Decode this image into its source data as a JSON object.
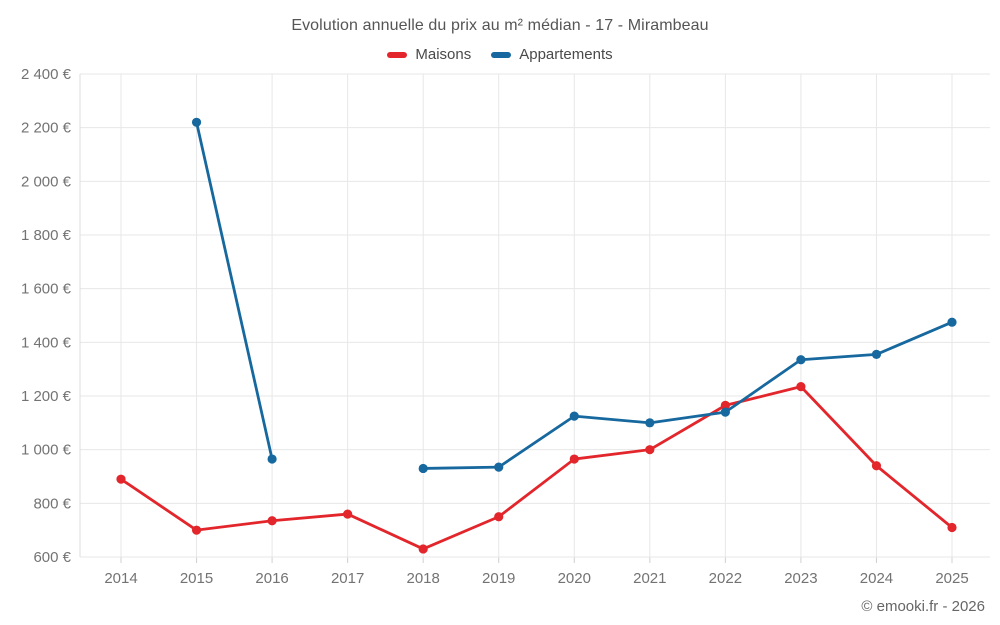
{
  "title": "Evolution annuelle du prix au m² médian - 17 - Mirambeau",
  "footer": "© emooki.fr - 2026",
  "legend": [
    {
      "label": "Maisons",
      "color": "#e2262b"
    },
    {
      "label": "Appartements",
      "color": "#16689e"
    }
  ],
  "colors": {
    "maisons": "#e2262b",
    "appartements": "#16689e",
    "grid": "#e7e7e7",
    "axis_line": "#dcdcdc",
    "tick": "#d0d0d0",
    "axis_text": "#737373",
    "title_text": "#555555",
    "footer_text": "#666666"
  },
  "chart_data": {
    "type": "line",
    "title": "Evolution annuelle du prix au m² médian - 17 - Mirambeau",
    "xlabel": "",
    "ylabel": "",
    "categories": [
      "2014",
      "2015",
      "2016",
      "2017",
      "2018",
      "2019",
      "2020",
      "2021",
      "2022",
      "2023",
      "2024",
      "2025"
    ],
    "series": [
      {
        "name": "Maisons",
        "color": "#e2262b",
        "values": [
          890,
          700,
          735,
          760,
          630,
          750,
          965,
          1000,
          1165,
          1235,
          940,
          710
        ]
      },
      {
        "name": "Appartements",
        "color": "#16689e",
        "values": [
          null,
          2220,
          965,
          null,
          930,
          935,
          1125,
          1100,
          1140,
          1335,
          1355,
          1475
        ]
      }
    ],
    "ylim": [
      600,
      2400
    ],
    "y_ticks": [
      600,
      800,
      1000,
      1200,
      1400,
      1600,
      1800,
      2000,
      2200,
      2400
    ],
    "y_tick_labels": [
      "600 €",
      "800 €",
      "1 000 €",
      "1 200 €",
      "1 400 €",
      "1 600 €",
      "1 800 €",
      "2 000 €",
      "2 200 €",
      "2 400 €"
    ],
    "grid": true,
    "legend_position": "top"
  }
}
